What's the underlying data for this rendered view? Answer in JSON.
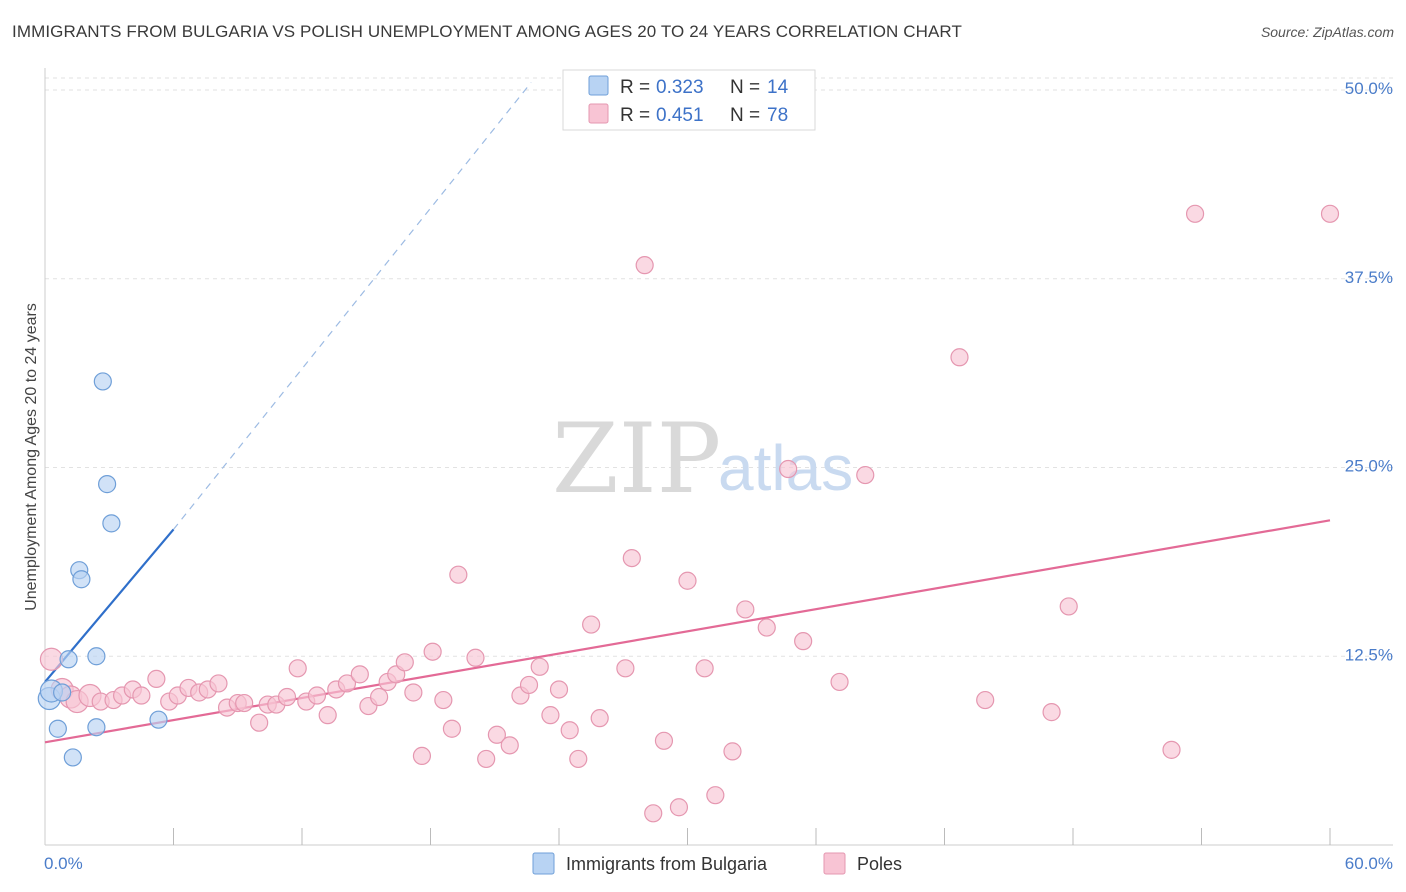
{
  "title": "IMMIGRANTS FROM BULGARIA VS POLISH UNEMPLOYMENT AMONG AGES 20 TO 24 YEARS CORRELATION CHART",
  "source": "Source: ZipAtlas.com",
  "watermark": {
    "zip": "ZIP",
    "atlas": "atlas"
  },
  "colors": {
    "bulgaria_fill": "#b8d3f3",
    "bulgaria_stroke": "#6f9fd8",
    "bulgaria_line": "#2f6fca",
    "poles_fill": "#f8c4d4",
    "poles_stroke": "#e597b0",
    "poles_line": "#e36a96",
    "grid": "#e2e2e2",
    "axis_text": "#4a7cc9"
  },
  "legend": {
    "rows": [
      {
        "r_label": "R =",
        "r_value": "0.323",
        "n_label": "N =",
        "n_value": "14"
      },
      {
        "r_label": "R =",
        "r_value": "0.451",
        "n_label": "N =",
        "n_value": "78"
      }
    ]
  },
  "chart_data": {
    "type": "scatter",
    "title": "IMMIGRANTS FROM BULGARIA VS POLISH UNEMPLOYMENT AMONG AGES 20 TO 24 YEARS CORRELATION CHART",
    "xlabel": "",
    "ylabel": "Unemployment Among Ages 20 to 24 years",
    "xlim": [
      0,
      60
    ],
    "ylim": [
      0,
      50
    ],
    "x_tick_labels": [
      "0.0%",
      "60.0%"
    ],
    "y_ticks": [
      12.5,
      25.0,
      37.5,
      50.0
    ],
    "y_tick_labels": [
      "12.5%",
      "25.0%",
      "37.5%",
      "50.0%"
    ],
    "legend_position": "top-center",
    "series": [
      {
        "name": "Immigrants from Bulgaria",
        "r": 0.323,
        "n": 14,
        "points": [
          [
            0.2,
            9.7
          ],
          [
            0.3,
            10.2
          ],
          [
            0.6,
            7.7
          ],
          [
            0.8,
            10.1
          ],
          [
            1.1,
            12.3
          ],
          [
            1.3,
            5.8
          ],
          [
            1.6,
            18.2
          ],
          [
            1.7,
            17.6
          ],
          [
            2.4,
            12.5
          ],
          [
            2.4,
            7.8
          ],
          [
            2.7,
            30.7
          ],
          [
            2.9,
            23.9
          ],
          [
            3.1,
            21.3
          ],
          [
            5.3,
            8.3
          ]
        ],
        "trend": {
          "x": [
            0,
            6
          ],
          "y": [
            10.8,
            20.9
          ]
        },
        "trend_dashed": {
          "x": [
            6,
            22.7
          ],
          "y": [
            20.9,
            50.5
          ]
        }
      },
      {
        "name": "Poles",
        "r": 0.451,
        "n": 78,
        "points": [
          [
            0.3,
            12.3
          ],
          [
            0.8,
            10.3
          ],
          [
            1.2,
            9.8
          ],
          [
            1.5,
            9.5
          ],
          [
            2.1,
            9.9
          ],
          [
            2.6,
            9.5
          ],
          [
            3.2,
            9.6
          ],
          [
            3.6,
            9.9
          ],
          [
            4.1,
            10.3
          ],
          [
            4.5,
            9.9
          ],
          [
            5.2,
            11.0
          ],
          [
            5.8,
            9.5
          ],
          [
            6.2,
            9.9
          ],
          [
            6.7,
            10.4
          ],
          [
            7.2,
            10.1
          ],
          [
            7.6,
            10.3
          ],
          [
            8.1,
            10.7
          ],
          [
            8.5,
            9.1
          ],
          [
            9.0,
            9.4
          ],
          [
            9.3,
            9.4
          ],
          [
            10.0,
            8.1
          ],
          [
            10.4,
            9.3
          ],
          [
            10.8,
            9.3
          ],
          [
            11.3,
            9.8
          ],
          [
            11.8,
            11.7
          ],
          [
            12.2,
            9.5
          ],
          [
            12.7,
            9.9
          ],
          [
            13.2,
            8.6
          ],
          [
            13.6,
            10.3
          ],
          [
            14.1,
            10.7
          ],
          [
            14.7,
            11.3
          ],
          [
            15.1,
            9.2
          ],
          [
            15.6,
            9.8
          ],
          [
            16.0,
            10.8
          ],
          [
            16.4,
            11.3
          ],
          [
            16.8,
            12.1
          ],
          [
            17.2,
            10.1
          ],
          [
            17.6,
            5.9
          ],
          [
            18.1,
            12.8
          ],
          [
            18.6,
            9.6
          ],
          [
            19.0,
            7.7
          ],
          [
            19.3,
            17.9
          ],
          [
            20.1,
            12.4
          ],
          [
            20.6,
            5.7
          ],
          [
            21.1,
            7.3
          ],
          [
            21.7,
            6.6
          ],
          [
            22.2,
            9.9
          ],
          [
            22.6,
            10.6
          ],
          [
            23.1,
            11.8
          ],
          [
            23.6,
            8.6
          ],
          [
            24.0,
            10.3
          ],
          [
            24.5,
            7.6
          ],
          [
            24.9,
            5.7
          ],
          [
            25.5,
            14.6
          ],
          [
            25.9,
            8.4
          ],
          [
            27.1,
            11.7
          ],
          [
            27.4,
            19.0
          ],
          [
            28.0,
            38.4
          ],
          [
            28.4,
            2.1
          ],
          [
            28.9,
            6.9
          ],
          [
            30.0,
            17.5
          ],
          [
            29.6,
            2.5
          ],
          [
            30.8,
            11.7
          ],
          [
            31.3,
            3.3
          ],
          [
            32.1,
            6.2
          ],
          [
            32.7,
            15.6
          ],
          [
            33.7,
            14.4
          ],
          [
            34.7,
            24.9
          ],
          [
            35.4,
            13.5
          ],
          [
            37.1,
            10.8
          ],
          [
            38.3,
            24.5
          ],
          [
            42.7,
            32.3
          ],
          [
            43.9,
            9.6
          ],
          [
            47.0,
            8.8
          ],
          [
            47.8,
            15.8
          ],
          [
            52.6,
            6.3
          ],
          [
            53.7,
            41.8
          ],
          [
            60.0,
            41.8
          ]
        ],
        "trend": {
          "x": [
            0,
            60
          ],
          "y": [
            6.8,
            21.5
          ]
        }
      }
    ]
  }
}
